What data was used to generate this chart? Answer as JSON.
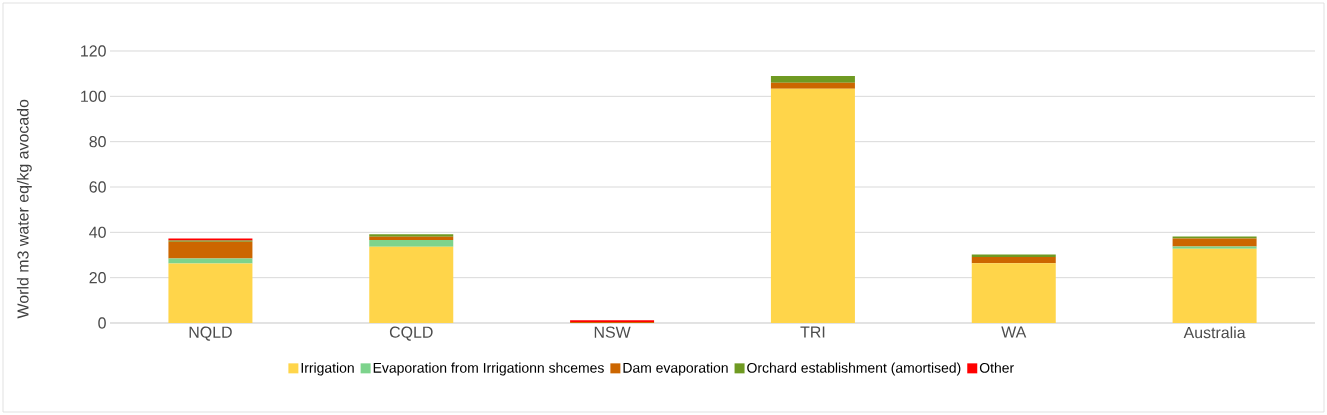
{
  "chart_data": {
    "type": "bar",
    "stacked": true,
    "ylabel": "World m3 water eq/kg avocado",
    "categories": [
      "NQLD",
      "CQLD",
      "NSW",
      "TRI",
      "WA",
      "Australia"
    ],
    "series": [
      {
        "name": "Irrigation",
        "color": "#ffd54a",
        "values": [
          26.3,
          33.6,
          0,
          103.4,
          26.4,
          32.8
        ]
      },
      {
        "name": "Evaporation from Irrigationn shcemes",
        "color": "#7dd38c",
        "values": [
          2.2,
          3.0,
          0,
          0,
          0,
          0.9
        ]
      },
      {
        "name": "Dam evaporation",
        "color": "#cc6600",
        "values": [
          7.3,
          1.4,
          0.4,
          2.6,
          2.7,
          3.6
        ]
      },
      {
        "name": "Orchard establishment (amortised)",
        "color": "#6f9a22",
        "values": [
          0.6,
          1.1,
          0,
          3.0,
          1.1,
          0.9
        ]
      },
      {
        "name": "Other",
        "color": "#ff0000",
        "values": [
          0.9,
          0,
          0.8,
          0,
          0,
          0
        ]
      }
    ],
    "ylim": [
      0,
      120
    ],
    "yticks": [
      0,
      20,
      40,
      60,
      80,
      100,
      120
    ],
    "grid": "y",
    "legend": "bottom"
  }
}
